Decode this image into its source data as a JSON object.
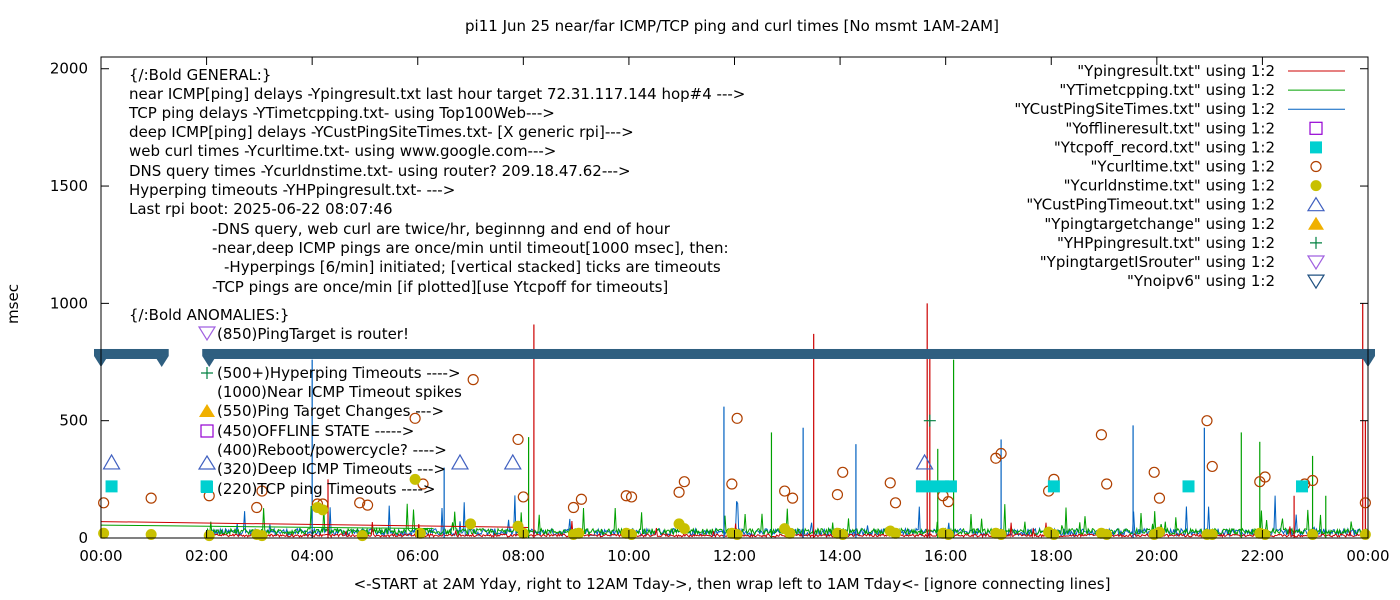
{
  "chart_data": {
    "type": "line",
    "title": "pi11 Jun 25  near/far ICMP/TCP ping and curl times [No msmt 1AM-2AM]",
    "xlabel": "<-START at 2AM Yday, right to 12AM Tday->, then wrap left to 1AM Tday<- [ignore connecting lines]",
    "ylabel": "msec",
    "xlim": [
      0,
      24
    ],
    "ylim": [
      0,
      2050
    ],
    "x_ticks": [
      "00:00",
      "02:00",
      "04:00",
      "06:00",
      "08:00",
      "10:00",
      "12:00",
      "14:00",
      "16:00",
      "18:00",
      "20:00",
      "22:00",
      "00:00"
    ],
    "x_tick_values": [
      0,
      2,
      4,
      6,
      8,
      10,
      12,
      14,
      16,
      18,
      20,
      22,
      24
    ],
    "y_ticks": [
      "0",
      "500",
      "1000",
      "1500",
      "2000"
    ],
    "y_tick_values": [
      0,
      500,
      1000,
      1500,
      2000
    ],
    "grid": false,
    "legend_position": "top-right",
    "colors": {
      "ping": "#cc0000",
      "tcp": "#00a000",
      "custping": "#0060c0",
      "offline": "#9400d3",
      "tcpoff": "#00d0d0",
      "curl": "#b04000",
      "dns": "#c8c000",
      "custtimeout": "#4060c0",
      "targetchange": "#f0b000",
      "hpping": "#008040",
      "isrouter": "#a060e0",
      "noipv6": "#205080",
      "band": "#2f5f80"
    },
    "legend": [
      {
        "label": "\"Ypingresult.txt\" using 1:2",
        "key": "ping",
        "kind": "line"
      },
      {
        "label": "\"YTimetcpping.txt\" using 1:2",
        "key": "tcp",
        "kind": "line"
      },
      {
        "label": "\"YCustPingSiteTimes.txt\" using 1:2",
        "key": "custping",
        "kind": "line"
      },
      {
        "label": "\"Yofflineresult.txt\" using 1:2",
        "key": "offline",
        "kind": "open-square"
      },
      {
        "label": "\"Ytcpoff_record.txt\" using 1:2",
        "key": "tcpoff",
        "kind": "filled-square"
      },
      {
        "label": "\"Ycurltime.txt\" using 1:2",
        "key": "curl",
        "kind": "open-circle"
      },
      {
        "label": "\"Ycurldnstime.txt\" using 1:2",
        "key": "dns",
        "kind": "filled-circle"
      },
      {
        "label": "\"YCustPingTimeout.txt\" using 1:2",
        "key": "custtimeout",
        "kind": "open-triangle"
      },
      {
        "label": "\"Ypingtargetchange\" using 1:2",
        "key": "targetchange",
        "kind": "filled-triangle"
      },
      {
        "label": "\"YHPpingresult.txt\" using 1:2",
        "key": "hpping",
        "kind": "plus"
      },
      {
        "label": "\"YpingtargetISrouter\" using 1:2",
        "key": "isrouter",
        "kind": "open-down-triangle"
      },
      {
        "label": "\"Ynoipv6\" using 1:2",
        "key": "noipv6",
        "kind": "open-down-triangle"
      }
    ],
    "annotations": [
      "{/:Bold GENERAL:}",
      "near ICMP[ping] delays -Ypingresult.txt last hour target 72.31.117.144 hop#4 --->",
      "TCP ping delays -YTimetcpping.txt- using Top100Web--->",
      "deep ICMP[ping] delays -YCustPingSiteTimes.txt- [X generic rpi]--->",
      "web curl times -Ycurltime.txt- using www.google.com--->",
      "DNS query times -Ycurldnstime.txt- using router? 209.18.47.62--->",
      "Hyperping timeouts -YHPpingresult.txt- --->",
      "Last rpi boot: 2025-06-22 08:07:46",
      "-DNS query, web curl are twice/hr, beginnng and end of hour",
      "-near,deep ICMP pings are once/min until timeout[1000 msec], then:",
      "-Hyperpings [6/min] initiated; [vertical stacked] ticks are timeouts",
      "-TCP pings are once/min [if plotted][use Ytcpoff for timeouts]",
      "{/:Bold ANOMALIES:}",
      "(850)PingTarget is router!",
      "(500+)Hyperping Timeouts ---->",
      "(1000)Near ICMP Timeout spikes",
      "(550)Ping Target Changes --->",
      "(450)OFFLINE STATE ----->",
      "(400)Reboot/powercycle? ---->",
      "(320)Deep ICMP Timeouts --->",
      "(220)TCP ping Timeouts ---->"
    ],
    "noipv6_band": {
      "y": 780,
      "gap_from": 1.15,
      "gap_to": 2.05
    },
    "spikes_ping": [
      [
        8.2,
        910
      ],
      [
        13.5,
        870
      ],
      [
        15.65,
        1000
      ],
      [
        23.9,
        1000
      ],
      [
        23.95,
        500
      ],
      [
        15.7,
        780
      ],
      [
        22.6,
        180
      ],
      [
        4.3,
        250
      ]
    ],
    "spikes_tcp": [
      [
        16.15,
        760
      ],
      [
        12.7,
        450
      ],
      [
        8.1,
        430
      ],
      [
        21.6,
        450
      ],
      [
        21.95,
        410
      ],
      [
        22.95,
        350
      ],
      [
        15.85,
        380
      ],
      [
        23.2,
        180
      ]
    ],
    "spikes_custping": [
      [
        4.0,
        760
      ],
      [
        11.8,
        560
      ],
      [
        13.3,
        470
      ],
      [
        17.05,
        420
      ],
      [
        19.55,
        480
      ],
      [
        20.9,
        470
      ],
      [
        14.3,
        400
      ],
      [
        6.5,
        300
      ]
    ],
    "curl_points": [
      [
        0.05,
        150
      ],
      [
        0.95,
        170
      ],
      [
        2.05,
        180
      ],
      [
        2.95,
        130
      ],
      [
        3.05,
        200
      ],
      [
        4.1,
        145
      ],
      [
        4.2,
        145
      ],
      [
        4.9,
        150
      ],
      [
        5.05,
        140
      ],
      [
        5.95,
        510
      ],
      [
        6.1,
        230
      ],
      [
        7.05,
        675
      ],
      [
        7.9,
        420
      ],
      [
        8.0,
        175
      ],
      [
        8.95,
        130
      ],
      [
        9.1,
        165
      ],
      [
        9.95,
        180
      ],
      [
        10.05,
        175
      ],
      [
        10.95,
        195
      ],
      [
        11.05,
        240
      ],
      [
        11.95,
        230
      ],
      [
        12.05,
        510
      ],
      [
        12.95,
        200
      ],
      [
        13.1,
        170
      ],
      [
        13.95,
        185
      ],
      [
        14.05,
        280
      ],
      [
        14.95,
        235
      ],
      [
        15.05,
        150
      ],
      [
        15.95,
        180
      ],
      [
        16.05,
        155
      ],
      [
        16.95,
        340
      ],
      [
        17.05,
        360
      ],
      [
        17.95,
        200
      ],
      [
        18.05,
        250
      ],
      [
        18.95,
        440
      ],
      [
        19.05,
        230
      ],
      [
        19.95,
        280
      ],
      [
        20.05,
        170
      ],
      [
        20.95,
        500
      ],
      [
        21.05,
        305
      ],
      [
        21.95,
        240
      ],
      [
        22.05,
        260
      ],
      [
        22.8,
        230
      ],
      [
        22.95,
        245
      ],
      [
        23.95,
        150
      ]
    ],
    "dns_points": [
      [
        0.05,
        20
      ],
      [
        0.95,
        15
      ],
      [
        2.05,
        10
      ],
      [
        2.95,
        15
      ],
      [
        3.05,
        10
      ],
      [
        4.1,
        130
      ],
      [
        4.2,
        120
      ],
      [
        4.95,
        10
      ],
      [
        5.95,
        250
      ],
      [
        6.05,
        20
      ],
      [
        7.0,
        60
      ],
      [
        7.9,
        50
      ],
      [
        8.0,
        20
      ],
      [
        8.95,
        15
      ],
      [
        9.05,
        20
      ],
      [
        9.95,
        20
      ],
      [
        10.05,
        15
      ],
      [
        10.95,
        60
      ],
      [
        11.05,
        40
      ],
      [
        11.95,
        20
      ],
      [
        12.05,
        15
      ],
      [
        12.95,
        40
      ],
      [
        13.05,
        20
      ],
      [
        13.95,
        20
      ],
      [
        14.05,
        15
      ],
      [
        14.95,
        30
      ],
      [
        15.05,
        20
      ],
      [
        15.95,
        20
      ],
      [
        16.05,
        15
      ],
      [
        16.95,
        20
      ],
      [
        17.05,
        15
      ],
      [
        17.95,
        25
      ],
      [
        18.05,
        15
      ],
      [
        18.95,
        20
      ],
      [
        19.05,
        15
      ],
      [
        19.95,
        15
      ],
      [
        20.05,
        25
      ],
      [
        20.95,
        15
      ],
      [
        21.05,
        15
      ],
      [
        21.95,
        20
      ],
      [
        22.05,
        15
      ],
      [
        22.95,
        15
      ],
      [
        23.95,
        15
      ]
    ],
    "tcpoff_points": [
      [
        0.2,
        220
      ],
      [
        2.0,
        220
      ],
      [
        15.55,
        220
      ],
      [
        15.75,
        220
      ],
      [
        15.95,
        220
      ],
      [
        16.1,
        220
      ],
      [
        18.05,
        220
      ],
      [
        20.6,
        220
      ],
      [
        22.75,
        220
      ]
    ],
    "custtimeout_points": [
      [
        0.2,
        320
      ],
      [
        7.8,
        320
      ],
      [
        15.6,
        320
      ],
      [
        6.8,
        320
      ]
    ],
    "hpping_points": [
      [
        15.7,
        500
      ]
    ]
  }
}
